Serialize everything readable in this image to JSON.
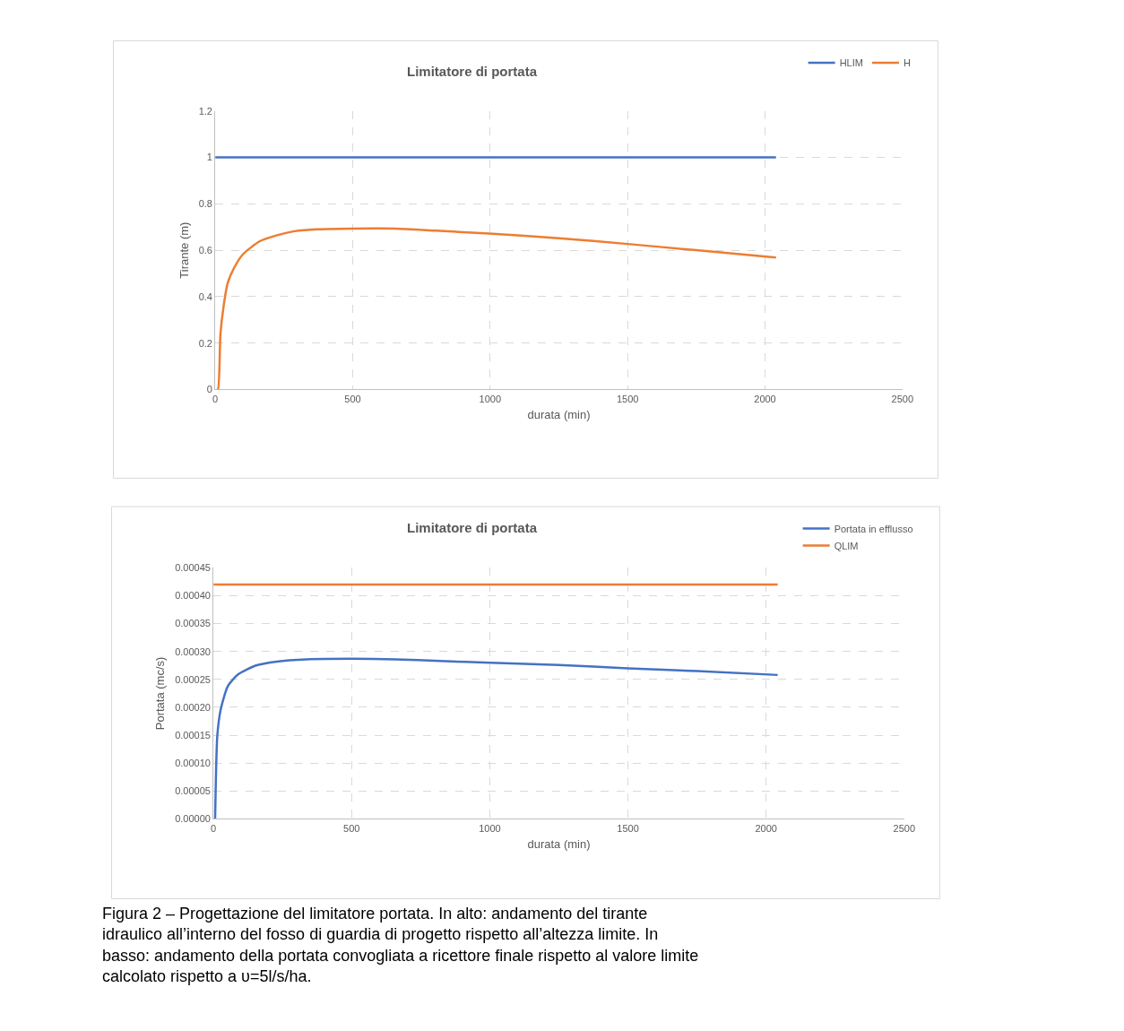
{
  "chart_data": [
    {
      "type": "line",
      "title": "Limitatore di portata",
      "xlabel": "durata (min)",
      "ylabel": "Tirante (m)",
      "xlim": [
        0,
        2500
      ],
      "xticks": [
        0,
        500,
        1000,
        1500,
        2000,
        2500
      ],
      "ylim": [
        0,
        1.2
      ],
      "yticks": [
        0,
        0.2,
        0.4,
        0.6,
        0.8,
        1,
        1.2
      ],
      "grid": true,
      "legend": "top right",
      "marker": "none",
      "line_style": "solid",
      "series": [
        {
          "name": "HLIM",
          "color": "#4472c4",
          "x": [
            0,
            2040
          ],
          "values": [
            1,
            1
          ]
        },
        {
          "name": "H",
          "color": "#ed7d31",
          "x": [
            5,
            10,
            19,
            30,
            45,
            70,
            102,
            161,
            214,
            289,
            375,
            500,
            653,
            803,
            996,
            1250,
            1500,
            1750,
            2040
          ],
          "values": [
            0,
            0,
            0.24,
            0.355,
            0.457,
            0.527,
            0.584,
            0.638,
            0.661,
            0.682,
            0.69,
            0.693,
            0.693,
            0.684,
            0.672,
            0.652,
            0.627,
            0.6,
            0.569
          ]
        }
      ]
    },
    {
      "type": "line",
      "title": "Limitatore di portata",
      "xlabel": "durata (min)",
      "ylabel": "Portata (mc/s)",
      "xlim": [
        0,
        2500
      ],
      "xticks": [
        0,
        500,
        1000,
        1500,
        2000,
        2500
      ],
      "ylim": [
        0,
        0.00045
      ],
      "yticks": [
        {
          "value": 0,
          "label": "0.00000"
        },
        {
          "value": 5e-05,
          "label": "0.00005"
        },
        {
          "value": 0.0001,
          "label": "0.00010"
        },
        {
          "value": 0.00015,
          "label": "0.00015"
        },
        {
          "value": 0.0002,
          "label": "0.00020"
        },
        {
          "value": 0.00025,
          "label": "0.00025"
        },
        {
          "value": 0.0003,
          "label": "0.00030"
        },
        {
          "value": 0.00035,
          "label": "0.00035"
        },
        {
          "value": 0.0004,
          "label": "0.00040"
        },
        {
          "value": 0.00045,
          "label": "0.00045"
        }
      ],
      "grid": true,
      "legend": "top right",
      "marker": "none",
      "line_style": "solid",
      "series": [
        {
          "name": "Portata in efflusso",
          "color": "#4472c4",
          "x": [
            6,
            14,
            27,
            52,
            89,
            154,
            229,
            337,
            500,
            659,
            820,
            1003,
            1250,
            1500,
            1750,
            2042
          ],
          "values": [
            0,
            0.00015,
            0.000198,
            0.000238,
            0.000259,
            0.000275,
            0.000282,
            0.000286,
            0.000287,
            0.000286,
            0.000283,
            0.00028,
            0.000276,
            0.00027,
            0.000265,
            0.000258
          ]
        },
        {
          "name": "QLIM",
          "color": "#ed7d31",
          "x": [
            0,
            2042
          ],
          "values": [
            0.00042,
            0.00042
          ]
        }
      ],
      "annotations": [
        "Figura 2 – Progettazione del limitatore portata. In alto: andamento del tirante idraulico all’interno del fosso di guardia di progetto rispetto all’altezza limite. In basso: andamento della portata convogliata a ricettore finale rispetto al valore limite calcolato rispetto a υ=5l/s/ha."
      ]
    }
  ]
}
